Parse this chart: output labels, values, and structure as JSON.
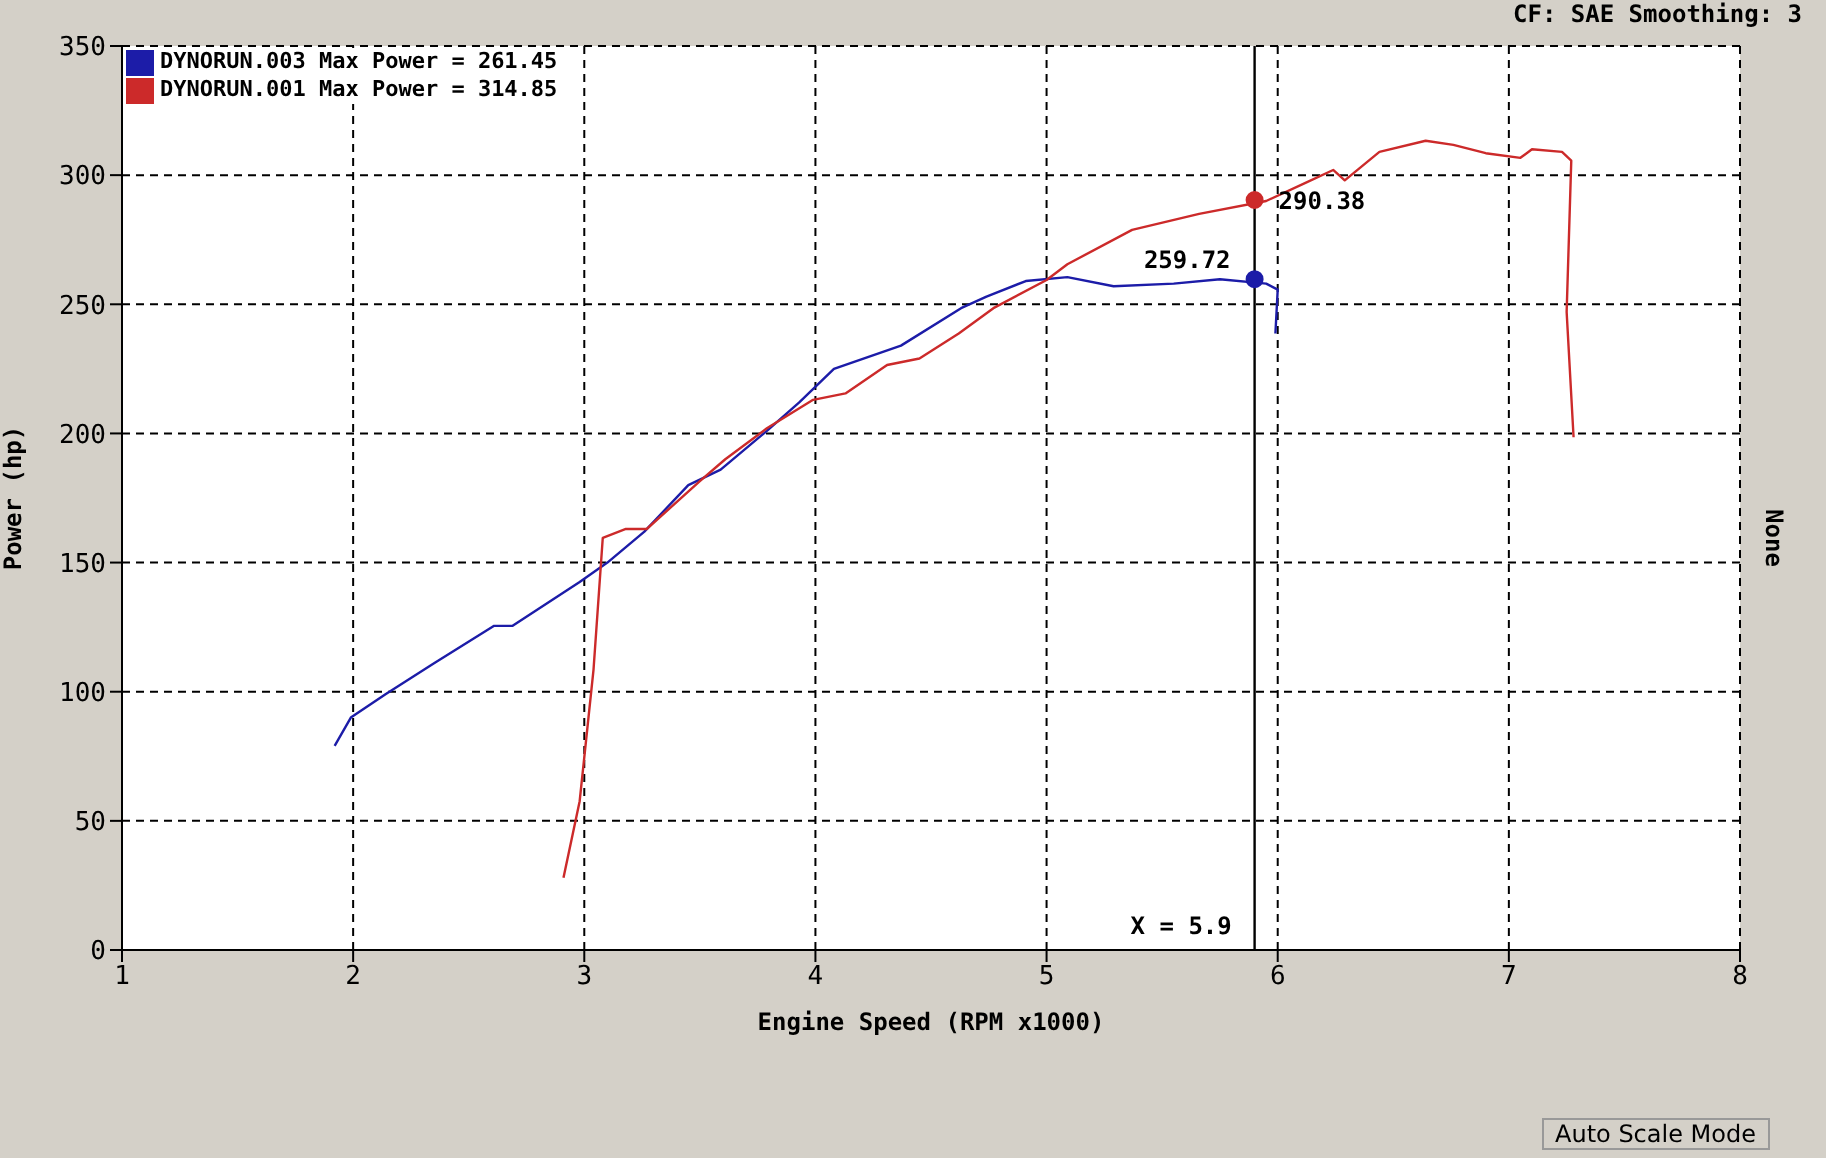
{
  "chart_data": {
    "type": "line",
    "subtitle": "CF: SAE  Smoothing: 3",
    "xlabel": "Engine Speed (RPM x1000)",
    "ylabel": "Power (hp)",
    "y2label": "None",
    "xlim": [
      1,
      8
    ],
    "xticks": [
      1,
      2,
      3,
      4,
      5,
      6,
      7,
      8
    ],
    "ylim": [
      0,
      350
    ],
    "yticks": [
      0,
      50,
      100,
      150,
      200,
      250,
      300,
      350
    ],
    "grid": true,
    "legend": "top left",
    "marker": "none",
    "line_style": "solid",
    "series": [
      {
        "name": "DYNORUN.003 Max Power = 261.45",
        "color": "#1c1ca8",
        "x": [
          1.92,
          1.99,
          2.14,
          2.35,
          2.61,
          2.69,
          2.98,
          3.1,
          3.26,
          3.45,
          3.59,
          3.79,
          3.93,
          4.08,
          4.37,
          4.63,
          4.74,
          4.91,
          5.09,
          5.29,
          5.55,
          5.75,
          5.95,
          6.0,
          5.99
        ],
        "values": [
          79,
          90,
          99,
          111,
          125.5,
          125.5,
          142.5,
          150,
          162,
          180,
          186,
          201,
          212,
          225,
          234,
          248.5,
          253,
          259,
          260.5,
          257,
          258,
          259.7,
          258,
          255.7,
          238.7
        ]
      },
      {
        "name": "DYNORUN.001 Max Power = 314.85",
        "color": "#cc2a2a",
        "x": [
          2.91,
          2.98,
          3.04,
          3.08,
          3.18,
          3.27,
          3.5,
          3.61,
          3.79,
          3.99,
          4.13,
          4.31,
          4.45,
          4.62,
          4.77,
          5.0,
          5.09,
          5.37,
          5.66,
          5.95,
          6.12,
          6.24,
          6.29,
          6.44,
          6.64,
          6.76,
          6.9,
          7.05,
          7.1,
          7.23,
          7.27,
          7.25,
          7.28
        ],
        "values": [
          28,
          57.6,
          108.6,
          159.6,
          163,
          163,
          181.5,
          190,
          202,
          213,
          215.5,
          226.5,
          229,
          238.7,
          248.5,
          259.4,
          265.5,
          278.8,
          285,
          290,
          297,
          302,
          298,
          309,
          313.3,
          311.7,
          308.5,
          306.7,
          310,
          309,
          305.6,
          247,
          198.5
        ]
      }
    ],
    "ref_lines": [
      {
        "axis": "x",
        "value": 5.9,
        "label": "X = 5.9",
        "color": "#000000",
        "line_style": "solid"
      }
    ],
    "annotations": [
      {
        "text": "259.72",
        "x": 5.9,
        "y": 259.72
      },
      {
        "text": "290.38",
        "x": 5.9,
        "y": 290.38
      },
      "Auto Scale Mode"
    ]
  }
}
